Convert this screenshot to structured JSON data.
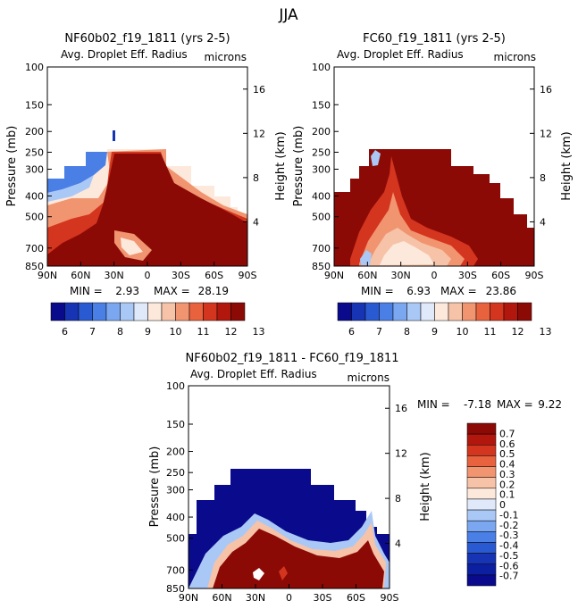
{
  "page_title": "JJA",
  "colors": {
    "field_scale": [
      "#0a0a8c",
      "#1634b4",
      "#2a5ad2",
      "#4a7fe6",
      "#7aa7f0",
      "#aac8f6",
      "#dfe9fa",
      "#fde8dc",
      "#f7c3a8",
      "#f19470",
      "#e8623e",
      "#d4351e",
      "#b2170e",
      "#8c0a06"
    ],
    "diff_scale": [
      "#0a0a8c",
      "#0b1fa0",
      "#1634b4",
      "#2a5ad2",
      "#4a7fe6",
      "#7aa7f0",
      "#aac8f6",
      "#dfe9fa",
      "#fde8dc",
      "#f7c3a8",
      "#f19470",
      "#e8623e",
      "#d4351e",
      "#b2170e",
      "#8c0a06"
    ]
  },
  "chart_data": [
    {
      "type": "contour",
      "title": "NF60b02_f19_1811 (yrs 2-5)",
      "subtitle": "Avg. Droplet Eff. Radius",
      "units": "microns",
      "xlabel": "",
      "ylabel": "Pressure (mb)",
      "y2label": "Height (km)",
      "x_ticks": [
        "90N",
        "60N",
        "30N",
        "0",
        "30S",
        "60S",
        "90S"
      ],
      "y_ticks": [
        "100",
        "150",
        "200",
        "250",
        "300",
        "400",
        "500",
        "700",
        "850"
      ],
      "y2_ticks": [
        "16",
        "12",
        "8",
        "4"
      ],
      "min_label": "MIN =",
      "min_value": "2.93",
      "max_label": "MAX =",
      "max_value": "28.19",
      "colorbar_labels": [
        "6",
        "7",
        "8",
        "9",
        "10",
        "11",
        "12",
        "13"
      ]
    },
    {
      "type": "contour",
      "title": "FC60_f19_1811 (yrs 2-5)",
      "subtitle": "Avg. Droplet Eff. Radius",
      "units": "microns",
      "xlabel": "",
      "ylabel": "Pressure (mb)",
      "y2label": "Height (km)",
      "x_ticks": [
        "90N",
        "60N",
        "30N",
        "0",
        "30S",
        "60S",
        "90S"
      ],
      "y_ticks": [
        "100",
        "150",
        "200",
        "250",
        "300",
        "400",
        "500",
        "700",
        "850"
      ],
      "y2_ticks": [
        "16",
        "12",
        "8",
        "4"
      ],
      "min_label": "MIN =",
      "min_value": "6.93",
      "max_label": "MAX =",
      "max_value": "23.86",
      "colorbar_labels": [
        "6",
        "7",
        "8",
        "9",
        "10",
        "11",
        "12",
        "13"
      ]
    },
    {
      "type": "contour",
      "title": "NF60b02_f19_1811 - FC60_f19_1811",
      "subtitle": "Avg. Droplet Eff. Radius",
      "units": "microns",
      "xlabel": "",
      "ylabel": "Pressure (mb)",
      "y2label": "Height (km)",
      "x_ticks": [
        "90N",
        "60N",
        "30N",
        "0",
        "30S",
        "60S",
        "90S"
      ],
      "y_ticks": [
        "100",
        "150",
        "200",
        "250",
        "300",
        "400",
        "500",
        "700",
        "850"
      ],
      "y2_ticks": [
        "16",
        "12",
        "8",
        "4"
      ],
      "min_label": "MIN =",
      "min_value": "-7.18",
      "max_label": "MAX =",
      "max_value": "9.22",
      "colorbar_labels": [
        "0.7",
        "0.6",
        "0.5",
        "0.4",
        "0.3",
        "0.2",
        "0.1",
        "0",
        "-0.1",
        "-0.2",
        "-0.3",
        "-0.4",
        "-0.5",
        "-0.6",
        "-0.7"
      ]
    }
  ]
}
